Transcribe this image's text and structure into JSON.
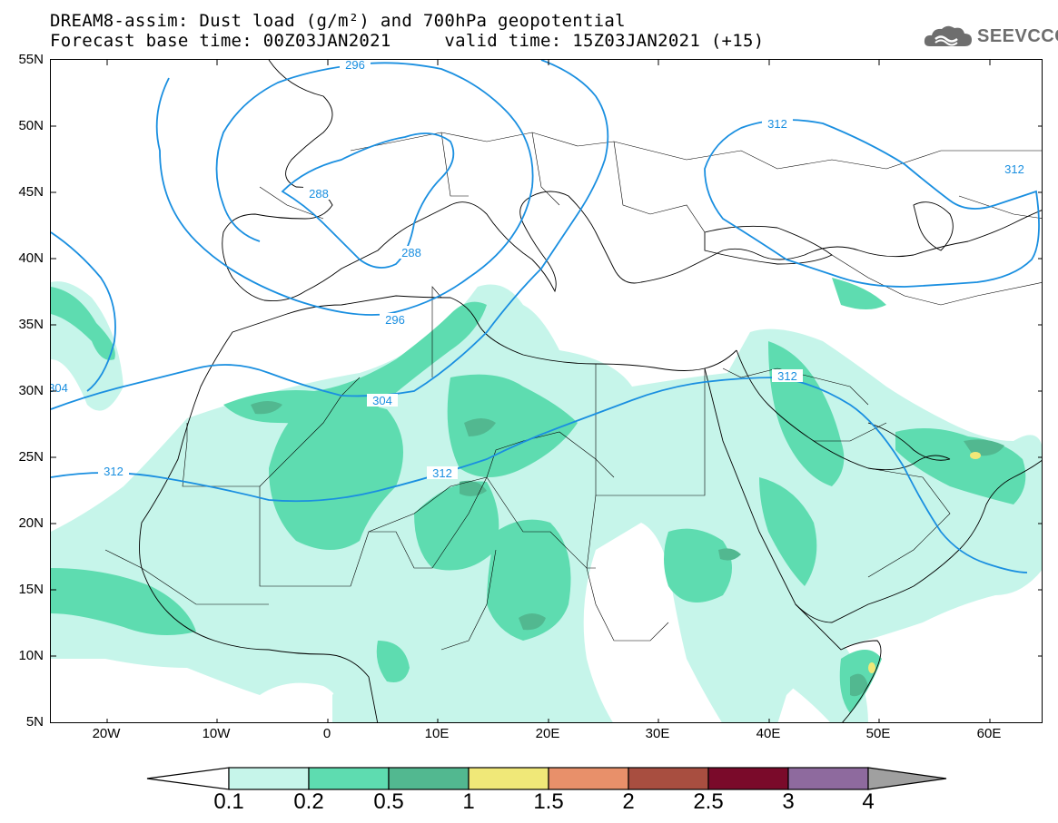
{
  "title": {
    "line1": "DREAM8-assim: Dust load (g/m²) and 700hPa geopotential",
    "line2": "Forecast base time: 00Z03JAN2021     valid time: 15Z03JAN2021 (+15)"
  },
  "logo": {
    "text": "SEEVCCC",
    "icon": "cloud-logo-icon"
  },
  "axes": {
    "lat_labels": [
      "55N",
      "50N",
      "45N",
      "40N",
      "35N",
      "30N",
      "25N",
      "20N",
      "15N",
      "10N",
      "5N"
    ],
    "lon_labels": [
      "20W",
      "10W",
      "0",
      "10E",
      "20E",
      "30E",
      "40E",
      "50E",
      "60E"
    ]
  },
  "contour_labels": [
    "296",
    "288",
    "288",
    "296",
    "304",
    "304",
    "312",
    "312",
    "312",
    "312",
    "312"
  ],
  "colorbar": {
    "levels": [
      "0.1",
      "0.2",
      "0.5",
      "1",
      "1.5",
      "2",
      "2.5",
      "3",
      "4"
    ],
    "colors": [
      "#c6f5ea",
      "#5edcb0",
      "#52b890",
      "#f0e878",
      "#e8906a",
      "#a84e40",
      "#7a0a2a",
      "#8e6a9e"
    ],
    "under_color": "#ffffff",
    "over_color": "#a0a0a0"
  },
  "colors": {
    "contour": "#1a8fe0",
    "dust_low": "#c6f5ea",
    "dust_mid": "#5edcb0",
    "dust_high": "#52b890",
    "dust_peak": "#f0e878"
  }
}
